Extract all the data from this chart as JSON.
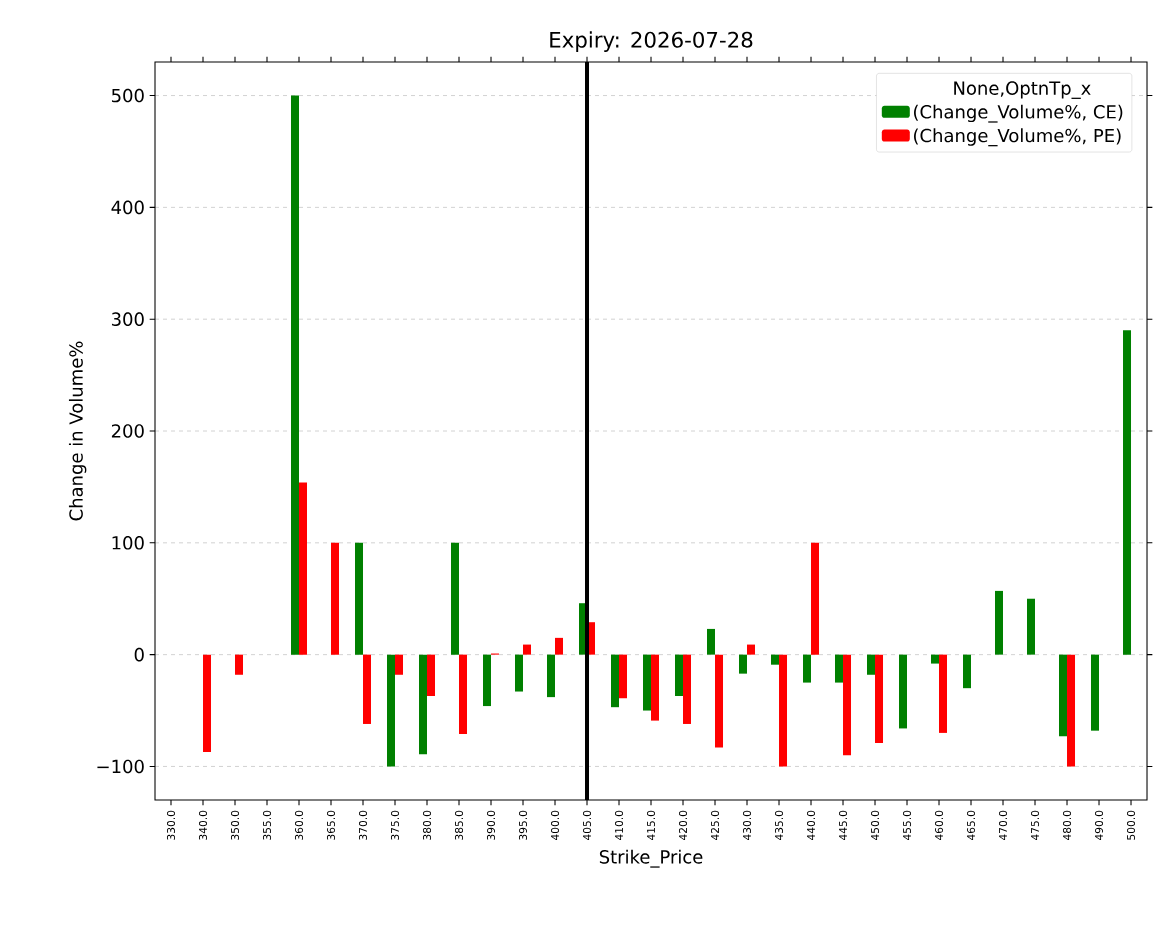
{
  "chart_data": {
    "type": "bar",
    "title": "Expiry: 2026-07-28",
    "xlabel": "Strike_Price",
    "ylabel": "Change in Volume%",
    "legend_title": "None,OptnTp_x",
    "categories": [
      "330.0",
      "340.0",
      "350.0",
      "355.0",
      "360.0",
      "365.0",
      "370.0",
      "375.0",
      "380.0",
      "385.0",
      "390.0",
      "395.0",
      "400.0",
      "405.0",
      "410.0",
      "415.0",
      "420.0",
      "425.0",
      "430.0",
      "435.0",
      "440.0",
      "445.0",
      "450.0",
      "455.0",
      "460.0",
      "465.0",
      "470.0",
      "475.0",
      "480.0",
      "490.0",
      "500.0"
    ],
    "series": [
      {
        "name": "(Change_Volume%, CE)",
        "color": "#008000",
        "values": [
          null,
          null,
          null,
          null,
          500,
          null,
          100,
          -100,
          -89,
          100,
          -46,
          -33,
          -38,
          46,
          -47,
          -50,
          -37,
          23,
          -17,
          -9,
          -25,
          -25,
          -18,
          -66,
          -8,
          -30,
          57,
          50,
          -73,
          -68,
          290
        ]
      },
      {
        "name": "(Change_Volume%, PE)",
        "color": "#ff0000",
        "values": [
          null,
          -87,
          -18,
          null,
          154,
          100,
          -62,
          -18,
          -37,
          -71,
          1,
          9,
          15,
          29,
          -39,
          -59,
          -62,
          -83,
          9,
          -100,
          100,
          -90,
          -79,
          null,
          -70,
          null,
          null,
          null,
          -100,
          null,
          null
        ]
      }
    ],
    "ylim": [
      -130,
      530
    ],
    "yticks": [
      {
        "value": -100,
        "label": "−100"
      },
      0,
      100,
      200,
      300,
      400,
      500
    ],
    "grid": "y",
    "legend": "top right",
    "ref_lines": [
      {
        "axis": "x",
        "value": "405.0",
        "color": "#000000"
      }
    ]
  }
}
